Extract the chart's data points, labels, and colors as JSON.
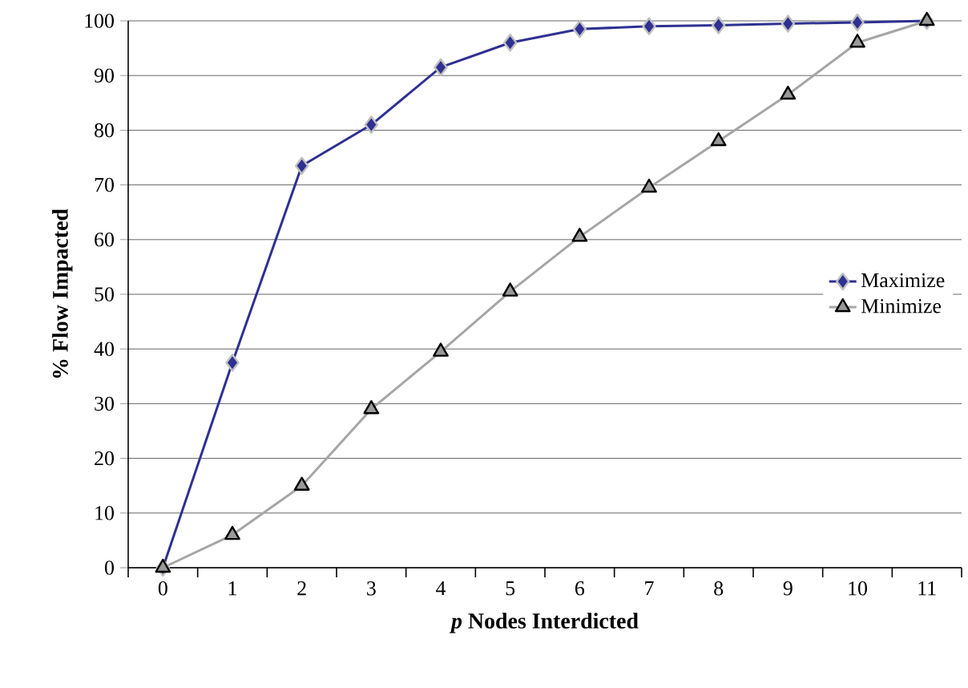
{
  "chart_data": {
    "type": "line",
    "xlabel": "*p* Nodes Interdicted",
    "ylabel": "% Flow Impacted",
    "categories": [
      "0",
      "1",
      "2",
      "3",
      "4",
      "5",
      "6",
      "7",
      "8",
      "9",
      "10",
      "11"
    ],
    "series": [
      {
        "name": "Maximize",
        "color": "#2e3192",
        "marker": "diamond",
        "values": [
          0,
          37.5,
          73.5,
          81,
          91.5,
          96,
          98.5,
          99,
          99.2,
          99.5,
          99.7,
          100
        ]
      },
      {
        "name": "Minimize",
        "color": "#a6a6a6",
        "marker": "triangle",
        "values": [
          0,
          6,
          15,
          29,
          39.5,
          50.5,
          60.5,
          69.5,
          78,
          86.5,
          96,
          100
        ]
      }
    ],
    "ylim": [
      0,
      100
    ],
    "yticks": [
      0,
      10,
      20,
      30,
      40,
      50,
      60,
      70,
      80,
      90,
      100
    ],
    "grid": "y",
    "legend": "right"
  }
}
